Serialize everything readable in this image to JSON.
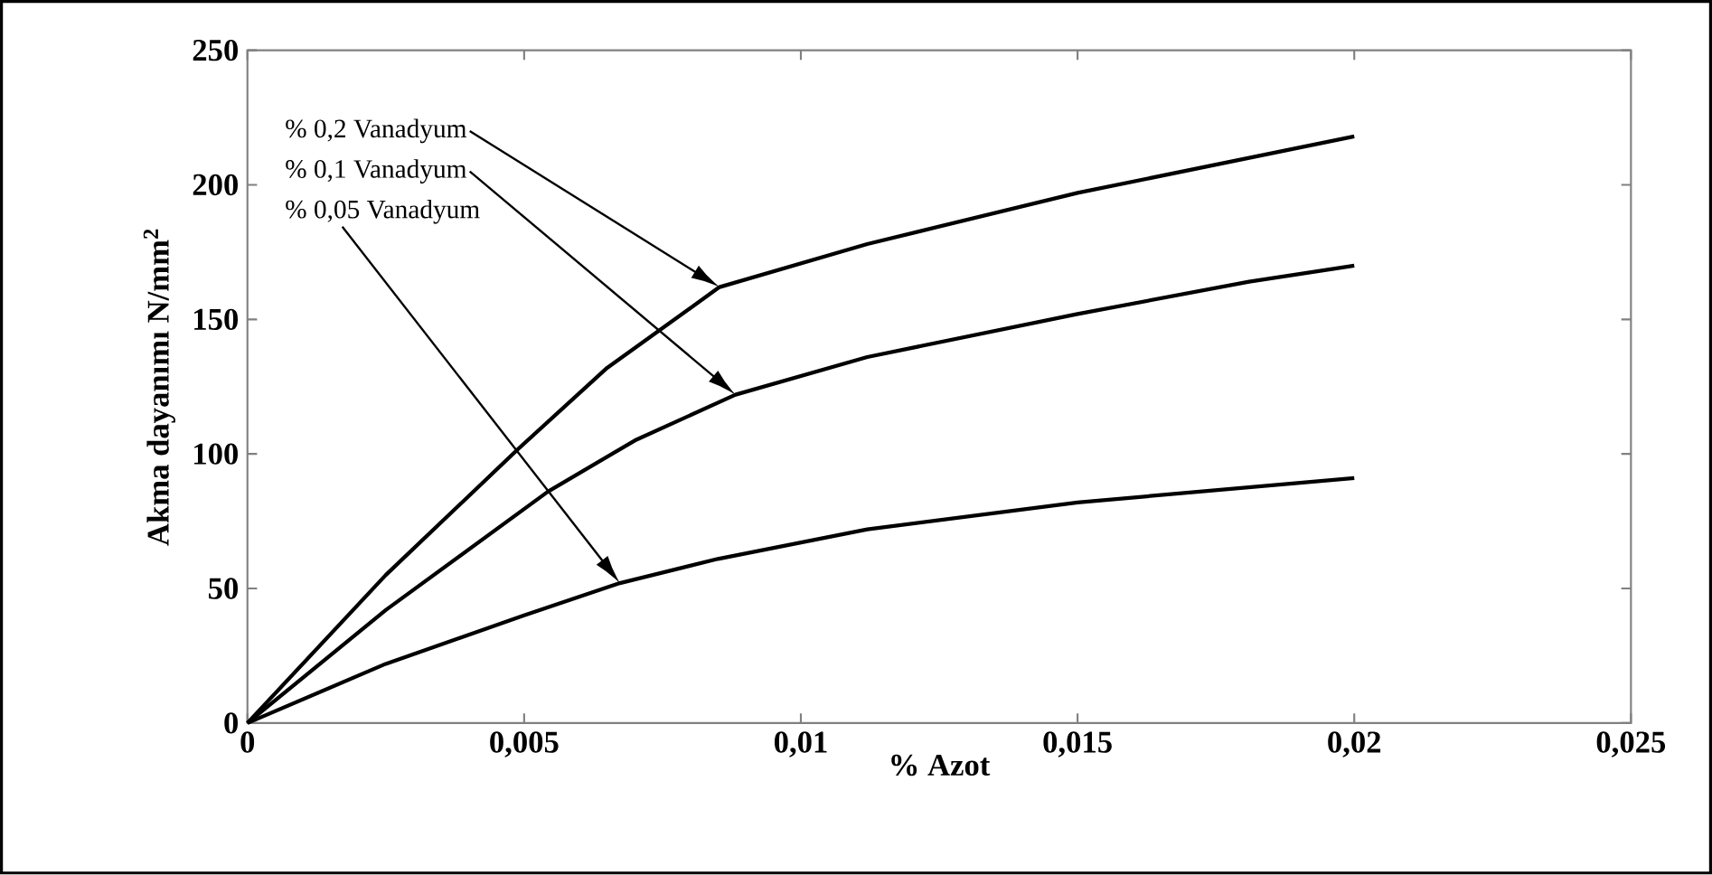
{
  "chart_data": {
    "type": "line",
    "xlabel": "% Azot",
    "ylabel": "Akma dayanımı N/mm$^{2}$",
    "xlim": [
      0,
      0.025
    ],
    "ylim": [
      0,
      250
    ],
    "xticks": [
      0,
      {
        "value": 0.005,
        "label": "0,005"
      },
      {
        "value": 0.01,
        "label": "0,01"
      },
      {
        "value": 0.015,
        "label": "0,015"
      },
      {
        "value": 0.02,
        "label": "0,02"
      },
      {
        "value": 0.025,
        "label": "0,025"
      }
    ],
    "yticks": [
      0,
      50,
      100,
      150,
      200,
      250
    ],
    "grid": false,
    "marker": "none",
    "line_style": "solid",
    "series": [
      {
        "name": "% 0,2 Vanadyum",
        "color": "#000000",
        "x": [
          0,
          0.0025,
          0.0049,
          0.0065,
          0.00853,
          0.0112,
          0.015,
          0.02
        ],
        "values": [
          0,
          55,
          102,
          132,
          162,
          178,
          197,
          218
        ]
      },
      {
        "name": "% 0,1 Vanadyum",
        "color": "#000000",
        "x": [
          0,
          0.0025,
          0.00543,
          0.007,
          0.00882,
          0.0112,
          0.015,
          0.0181,
          0.02
        ],
        "values": [
          0,
          42,
          86,
          105,
          122,
          136,
          152,
          164,
          170
        ]
      },
      {
        "name": "% 0,05 Vanadyum",
        "color": "#000000",
        "x": [
          0,
          0.0025,
          0.005,
          0.00673,
          0.0085,
          0.0112,
          0.015,
          0.02
        ],
        "values": [
          0,
          22,
          40,
          52,
          61,
          72,
          82,
          91
        ]
      }
    ]
  }
}
